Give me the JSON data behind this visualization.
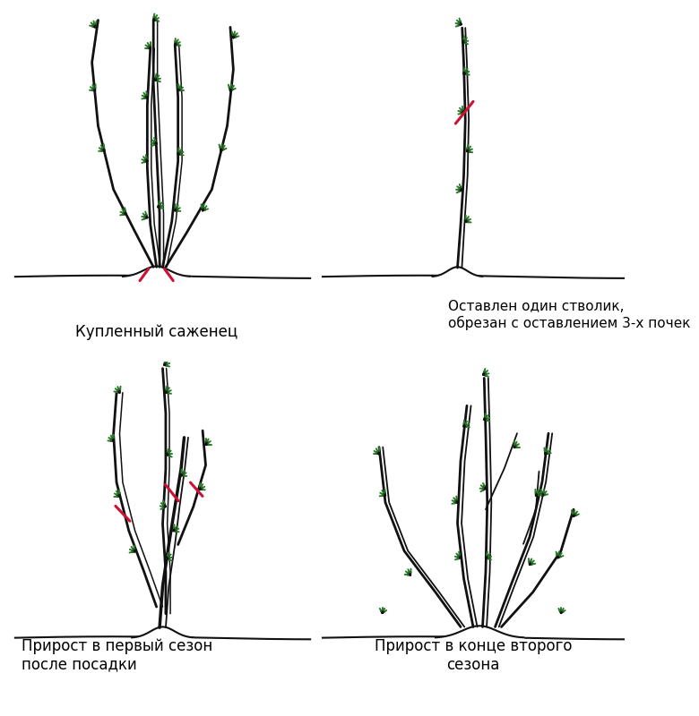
{
  "bg_color": "#ffffff",
  "bc": "#111111",
  "gc": "#2a7a2a",
  "cc": "#cc1133",
  "lw_main": 2.0,
  "lw_thin": 1.3,
  "bud_size": 0.018,
  "labels": {
    "tl": "Купленный саженец",
    "tr": "Оставлен один стволик,\nобрезан с оставлением 3-х почек",
    "bl": "Прирост в первый сезон\nпосле посадки",
    "br": "Прирост в конце второго\nсезона"
  },
  "font_size": 12
}
